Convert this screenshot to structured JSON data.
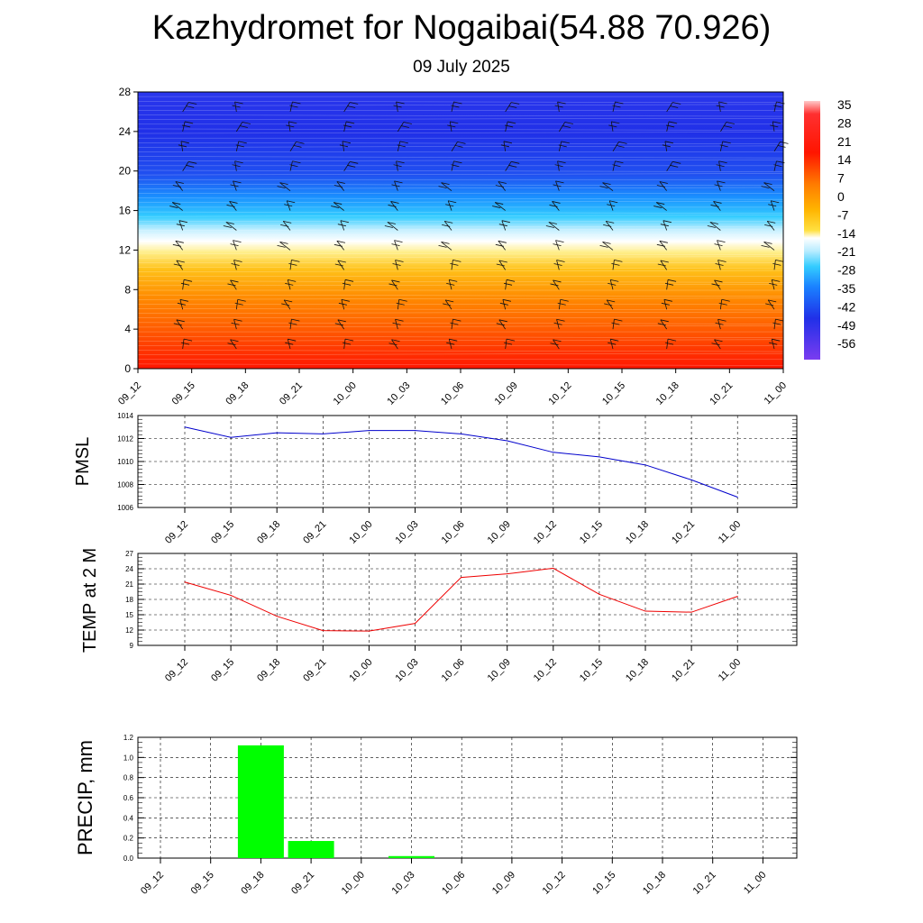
{
  "title": "Kazhydromet for Nogaibai(54.88 70.926)",
  "subtitle": "09 July 2025",
  "time_labels": [
    "09_12",
    "09_15",
    "09_18",
    "09_21",
    "10_00",
    "10_03",
    "10_06",
    "10_09",
    "10_12",
    "10_15",
    "10_18",
    "10_21",
    "11_00"
  ],
  "chart_data": [
    {
      "type": "heatmap",
      "title": "",
      "y_ticks": [
        0,
        4,
        8,
        12,
        16,
        20,
        24,
        28
      ],
      "ylim": [
        0,
        28
      ],
      "colorbar_labels": [
        "35",
        "28",
        "21",
        "14",
        "7",
        "0",
        "-7",
        "-14",
        "-21",
        "-28",
        "-35",
        "-42",
        "-49",
        "-56"
      ],
      "colors": {
        "hot": "#ff1500",
        "orange": "#ff8c00",
        "yellow": "#ffe040",
        "white": "#ffffff",
        "cyan": "#33ccff",
        "blue": "#2030e8",
        "violet": "#6633ee"
      },
      "wind_barbs": true
    },
    {
      "type": "line",
      "ylabel": "PMSL",
      "x": [
        "09_12",
        "09_15",
        "09_18",
        "09_21",
        "10_00",
        "10_03",
        "10_06",
        "10_09",
        "10_12",
        "10_15",
        "10_18",
        "10_21",
        "11_00"
      ],
      "values": [
        1013.0,
        1012.1,
        1012.5,
        1012.4,
        1012.7,
        1012.7,
        1012.4,
        1011.8,
        1010.8,
        1010.4,
        1009.7,
        1008.4,
        1006.9
      ],
      "ylim": [
        1006,
        1014
      ],
      "y_ticks": [
        1006,
        1008,
        1010,
        1012,
        1014
      ],
      "color": "#0000cc",
      "grid": true
    },
    {
      "type": "line",
      "ylabel": "TEMP at 2 M",
      "x": [
        "09_12",
        "09_15",
        "09_18",
        "09_21",
        "10_00",
        "10_03",
        "10_06",
        "10_09",
        "10_12",
        "10_15",
        "10_18",
        "10_21",
        "11_00"
      ],
      "values": [
        21.4,
        18.8,
        14.7,
        11.9,
        11.8,
        13.3,
        22.3,
        23.0,
        24.1,
        19.0,
        15.7,
        15.5,
        18.6
      ],
      "ylim": [
        9,
        27
      ],
      "y_ticks": [
        9,
        12,
        15,
        18,
        21,
        24,
        27
      ],
      "color": "#ee0000",
      "grid": true
    },
    {
      "type": "bar",
      "ylabel": "PRECIP, mm",
      "categories": [
        "09_12",
        "09_15",
        "09_18",
        "09_21",
        "10_00",
        "10_03",
        "10_06",
        "10_09",
        "10_12",
        "10_15",
        "10_18",
        "10_21",
        "11_00"
      ],
      "values": [
        0,
        0,
        1.12,
        0.17,
        0,
        0.02,
        0,
        0,
        0,
        0,
        0,
        0,
        0
      ],
      "ylim": [
        0,
        1.2
      ],
      "y_ticks": [
        "0.0",
        "0.2",
        "0.4",
        "0.6",
        "0.8",
        "1.0",
        "1.2"
      ],
      "color": "#00ff00",
      "grid": true
    }
  ]
}
